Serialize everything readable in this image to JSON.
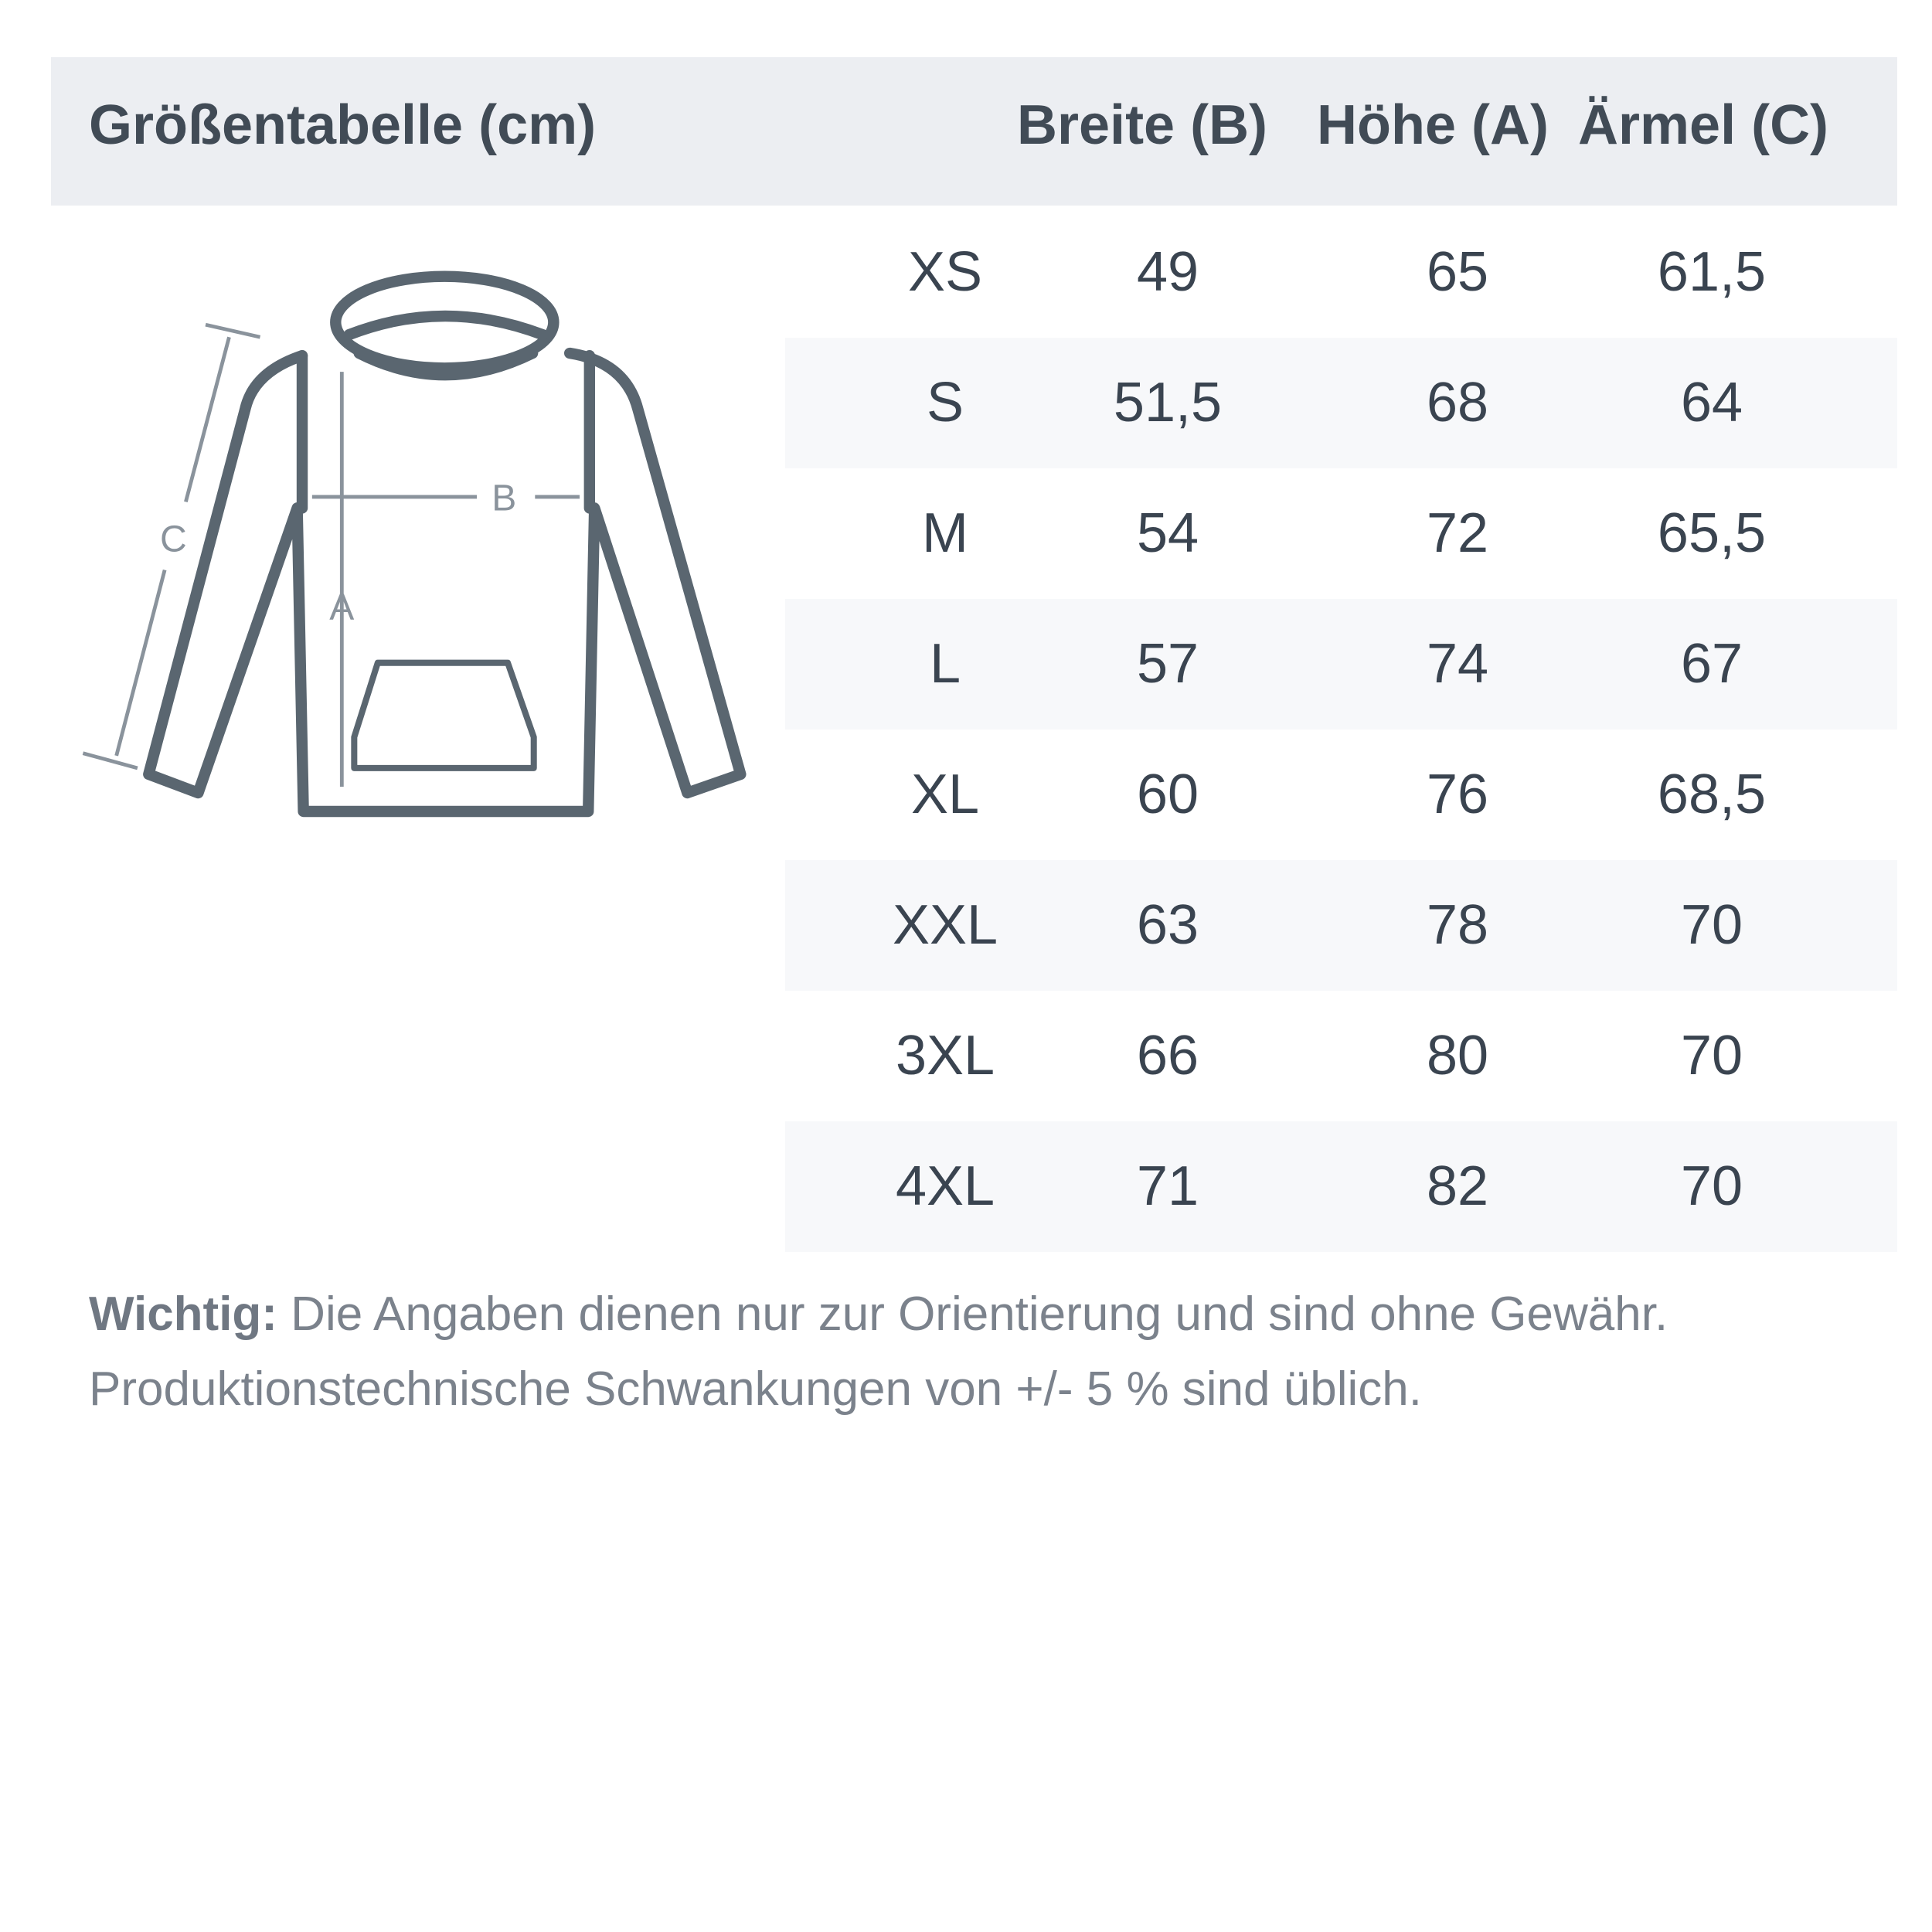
{
  "header": {
    "title": "Größentabelle (cm)",
    "columns": [
      "Breite (B)",
      "Höhe (A)",
      "Ärmel (C)"
    ]
  },
  "rows": [
    {
      "size": "XS",
      "breite": "49",
      "hoehe": "65",
      "aermel": "61,5"
    },
    {
      "size": "S",
      "breite": "51,5",
      "hoehe": "68",
      "aermel": "64"
    },
    {
      "size": "M",
      "breite": "54",
      "hoehe": "72",
      "aermel": "65,5"
    },
    {
      "size": "L",
      "breite": "57",
      "hoehe": "74",
      "aermel": "67"
    },
    {
      "size": "XL",
      "breite": "60",
      "hoehe": "76",
      "aermel": "68,5"
    },
    {
      "size": "XXL",
      "breite": "63",
      "hoehe": "78",
      "aermel": "70"
    },
    {
      "size": "3XL",
      "breite": "66",
      "hoehe": "80",
      "aermel": "70"
    },
    {
      "size": "4XL",
      "breite": "71",
      "hoehe": "82",
      "aermel": "70"
    }
  ],
  "diagram": {
    "label_b": "B",
    "label_a": "A",
    "label_c": "C",
    "icon": "hoodie-outline"
  },
  "note": {
    "bold": "Wichtig:",
    "line1": " Die Angaben dienen nur zur Orientierung und sind ohne Gewähr.",
    "line2": "Produktionstechnische Schwankungen von +/- 5 % sind üblich."
  },
  "colors": {
    "header_bg": "#eceef2",
    "stripe": "#f7f8fa",
    "outline": "#5a6670",
    "measure": "#8a939c"
  }
}
